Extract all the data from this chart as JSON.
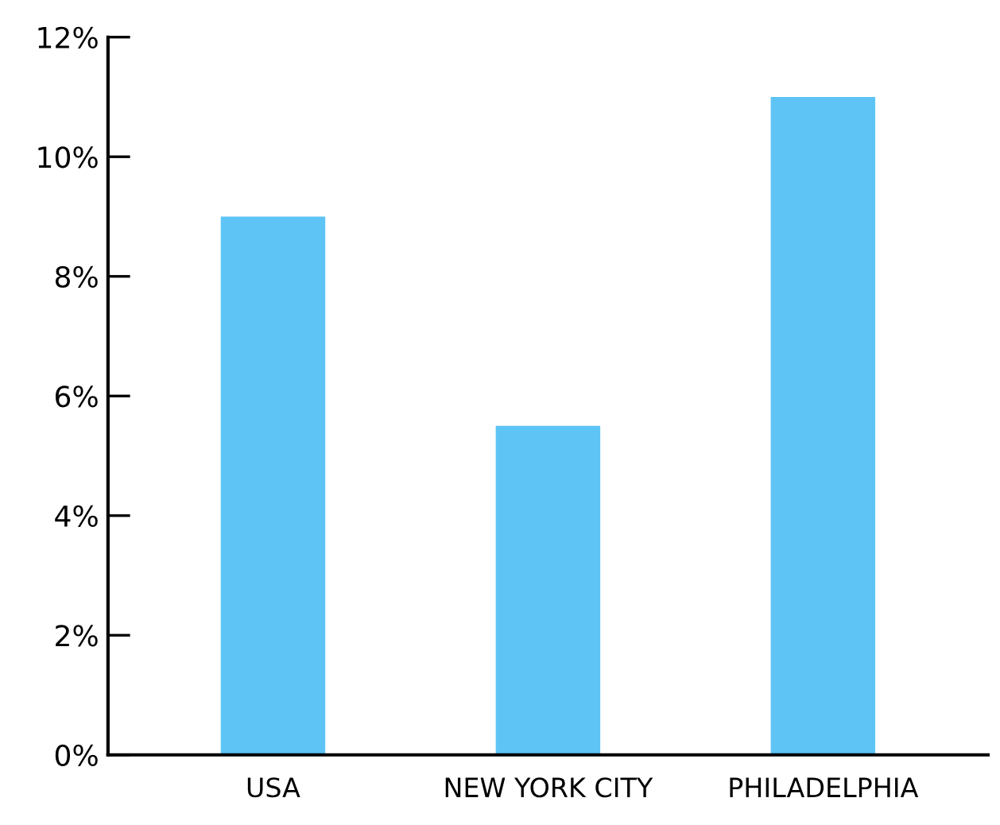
{
  "chart_data": {
    "type": "bar",
    "categories": [
      "USA",
      "NEW YORK CITY",
      "PHILADELPHIA"
    ],
    "values": [
      9.0,
      5.5,
      11.0
    ],
    "color": "#5ec4f6",
    "ylim": [
      0,
      12
    ],
    "yticks": [
      {
        "value": 0,
        "label": "0%"
      },
      {
        "value": 2,
        "label": "2%"
      },
      {
        "value": 4,
        "label": "4%"
      },
      {
        "value": 6,
        "label": "6%"
      },
      {
        "value": 8,
        "label": "8%"
      },
      {
        "value": 10,
        "label": "10%"
      },
      {
        "value": 12,
        "label": "12%"
      }
    ],
    "grid": false
  }
}
